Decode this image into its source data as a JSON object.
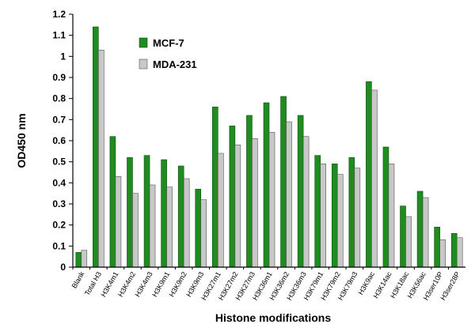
{
  "chart_data": {
    "type": "bar",
    "title": "",
    "xlabel": "Histone modifications",
    "ylabel": "OD450 nm",
    "ylim": [
      0,
      1.2
    ],
    "yticks": [
      "0",
      "0.1",
      "0.2",
      "0.3",
      "0.4",
      "0.5",
      "0.6",
      "0.7",
      "0.8",
      "0.9",
      "1",
      "1.1",
      "1.2"
    ],
    "grid": false,
    "legend": "top-left",
    "categories": [
      "Blank",
      "Total H3",
      "H3K4m1",
      "H3K4m2",
      "H3K4m3",
      "H3K9m1",
      "H3K9m2",
      "H3K9m3",
      "H3K27m1",
      "H3K27m2",
      "H3K27m3",
      "H3K36m1",
      "H3K36m2",
      "H3K36m3",
      "H3K79m1",
      "H3K79m2",
      "H3K79m3",
      "H3K9ac",
      "H3K14ac",
      "H3K18ac",
      "H3K56ac",
      "H3ser10P",
      "H3ser28P"
    ],
    "series": [
      {
        "name": "MCF-7",
        "color": "#1e8c1e",
        "values": [
          0.07,
          1.14,
          0.62,
          0.52,
          0.53,
          0.51,
          0.48,
          0.37,
          0.76,
          0.67,
          0.72,
          0.78,
          0.81,
          0.72,
          0.53,
          0.49,
          0.52,
          0.88,
          0.57,
          0.29,
          0.36,
          0.19,
          0.16
        ]
      },
      {
        "name": "MDA-231",
        "color": "#c8c8c8",
        "values": [
          0.08,
          1.03,
          0.43,
          0.35,
          0.39,
          0.38,
          0.42,
          0.32,
          0.54,
          0.58,
          0.61,
          0.64,
          0.69,
          0.62,
          0.49,
          0.44,
          0.47,
          0.84,
          0.49,
          0.24,
          0.33,
          0.13,
          0.14
        ]
      }
    ]
  }
}
